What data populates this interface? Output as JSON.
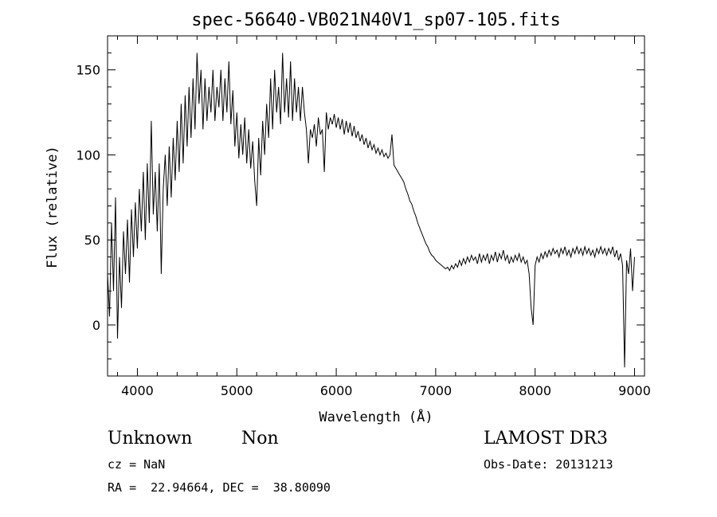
{
  "chart_data": {
    "type": "line",
    "title": "spec-56640-VB021N40V1_sp07-105.fits",
    "xlabel": "Wavelength (Å)",
    "ylabel": "Flux (relative)",
    "xlim": [
      3700,
      9100
    ],
    "ylim": [
      -30,
      170
    ],
    "xticks": [
      4000,
      5000,
      6000,
      7000,
      8000,
      9000
    ],
    "yticks": [
      0,
      50,
      100,
      150
    ],
    "grid": false,
    "series": [
      {
        "points": [
          [
            3700,
            30
          ],
          [
            3720,
            5
          ],
          [
            3740,
            60
          ],
          [
            3760,
            20
          ],
          [
            3780,
            75
          ],
          [
            3800,
            -8
          ],
          [
            3820,
            40
          ],
          [
            3840,
            10
          ],
          [
            3860,
            55
          ],
          [
            3880,
            30
          ],
          [
            3900,
            62
          ],
          [
            3920,
            25
          ],
          [
            3940,
            68
          ],
          [
            3960,
            40
          ],
          [
            3980,
            72
          ],
          [
            4000,
            45
          ],
          [
            4020,
            80
          ],
          [
            4040,
            55
          ],
          [
            4060,
            90
          ],
          [
            4080,
            50
          ],
          [
            4100,
            95
          ],
          [
            4120,
            60
          ],
          [
            4140,
            120
          ],
          [
            4160,
            65
          ],
          [
            4180,
            90
          ],
          [
            4200,
            55
          ],
          [
            4220,
            95
          ],
          [
            4240,
            30
          ],
          [
            4260,
            80
          ],
          [
            4280,
            100
          ],
          [
            4300,
            70
          ],
          [
            4320,
            105
          ],
          [
            4340,
            75
          ],
          [
            4360,
            110
          ],
          [
            4380,
            85
          ],
          [
            4400,
            120
          ],
          [
            4420,
            90
          ],
          [
            4440,
            130
          ],
          [
            4460,
            95
          ],
          [
            4480,
            135
          ],
          [
            4500,
            105
          ],
          [
            4520,
            140
          ],
          [
            4540,
            110
          ],
          [
            4560,
            145
          ],
          [
            4580,
            115
          ],
          [
            4600,
            160
          ],
          [
            4620,
            130
          ],
          [
            4640,
            150
          ],
          [
            4660,
            115
          ],
          [
            4680,
            145
          ],
          [
            4700,
            120
          ],
          [
            4720,
            140
          ],
          [
            4740,
            125
          ],
          [
            4760,
            150
          ],
          [
            4780,
            120
          ],
          [
            4800,
            140
          ],
          [
            4820,
            128
          ],
          [
            4840,
            150
          ],
          [
            4860,
            120
          ],
          [
            4880,
            145
          ],
          [
            4900,
            125
          ],
          [
            4920,
            155
          ],
          [
            4940,
            118
          ],
          [
            4960,
            138
          ],
          [
            4980,
            105
          ],
          [
            5000,
            125
          ],
          [
            5020,
            98
          ],
          [
            5040,
            118
          ],
          [
            5060,
            100
          ],
          [
            5080,
            122
          ],
          [
            5100,
            95
          ],
          [
            5120,
            115
          ],
          [
            5140,
            92
          ],
          [
            5160,
            108
          ],
          [
            5180,
            85
          ],
          [
            5200,
            70
          ],
          [
            5220,
            110
          ],
          [
            5240,
            88
          ],
          [
            5260,
            120
          ],
          [
            5280,
            100
          ],
          [
            5300,
            130
          ],
          [
            5320,
            110
          ],
          [
            5340,
            145
          ],
          [
            5360,
            115
          ],
          [
            5380,
            150
          ],
          [
            5400,
            125
          ],
          [
            5420,
            140
          ],
          [
            5440,
            118
          ],
          [
            5460,
            160
          ],
          [
            5480,
            125
          ],
          [
            5500,
            145
          ],
          [
            5520,
            122
          ],
          [
            5540,
            155
          ],
          [
            5560,
            120
          ],
          [
            5580,
            145
          ],
          [
            5600,
            125
          ],
          [
            5620,
            140
          ],
          [
            5640,
            120
          ],
          [
            5660,
            140
          ],
          [
            5680,
            125
          ],
          [
            5700,
            115
          ],
          [
            5720,
            95
          ],
          [
            5740,
            115
          ],
          [
            5760,
            110
          ],
          [
            5780,
            118
          ],
          [
            5800,
            105
          ],
          [
            5820,
            122
          ],
          [
            5840,
            112
          ],
          [
            5860,
            115
          ],
          [
            5880,
            90
          ],
          [
            5900,
            125
          ],
          [
            5920,
            115
          ],
          [
            5940,
            122
          ],
          [
            5960,
            118
          ],
          [
            5980,
            124
          ],
          [
            6000,
            116
          ],
          [
            6020,
            122
          ],
          [
            6040,
            115
          ],
          [
            6060,
            121
          ],
          [
            6080,
            112
          ],
          [
            6100,
            120
          ],
          [
            6120,
            113
          ],
          [
            6140,
            119
          ],
          [
            6160,
            111
          ],
          [
            6180,
            117
          ],
          [
            6200,
            110
          ],
          [
            6220,
            114
          ],
          [
            6240,
            108
          ],
          [
            6260,
            112
          ],
          [
            6280,
            106
          ],
          [
            6300,
            110
          ],
          [
            6320,
            104
          ],
          [
            6340,
            108
          ],
          [
            6360,
            103
          ],
          [
            6380,
            106
          ],
          [
            6400,
            101
          ],
          [
            6420,
            104
          ],
          [
            6440,
            100
          ],
          [
            6460,
            103
          ],
          [
            6480,
            99
          ],
          [
            6500,
            101
          ],
          [
            6520,
            98
          ],
          [
            6540,
            100
          ],
          [
            6560,
            112
          ],
          [
            6580,
            94
          ],
          [
            6600,
            92
          ],
          [
            6620,
            90
          ],
          [
            6640,
            88
          ],
          [
            6660,
            86
          ],
          [
            6680,
            84
          ],
          [
            6700,
            80
          ],
          [
            6720,
            77
          ],
          [
            6740,
            73
          ],
          [
            6760,
            71
          ],
          [
            6780,
            67
          ],
          [
            6800,
            64
          ],
          [
            6820,
            60
          ],
          [
            6840,
            57
          ],
          [
            6860,
            54
          ],
          [
            6880,
            51
          ],
          [
            6900,
            48
          ],
          [
            6920,
            46
          ],
          [
            6940,
            43
          ],
          [
            6960,
            41
          ],
          [
            6980,
            40
          ],
          [
            7000,
            38
          ],
          [
            7020,
            37
          ],
          [
            7040,
            36
          ],
          [
            7060,
            35
          ],
          [
            7080,
            34
          ],
          [
            7100,
            33
          ],
          [
            7120,
            34
          ],
          [
            7140,
            32
          ],
          [
            7160,
            35
          ],
          [
            7180,
            33
          ],
          [
            7200,
            36
          ],
          [
            7220,
            34
          ],
          [
            7240,
            38
          ],
          [
            7260,
            35
          ],
          [
            7280,
            39
          ],
          [
            7300,
            36
          ],
          [
            7320,
            40
          ],
          [
            7340,
            37
          ],
          [
            7360,
            41
          ],
          [
            7380,
            38
          ],
          [
            7400,
            40
          ],
          [
            7420,
            36
          ],
          [
            7440,
            42
          ],
          [
            7460,
            37
          ],
          [
            7480,
            41
          ],
          [
            7500,
            38
          ],
          [
            7520,
            42
          ],
          [
            7540,
            36
          ],
          [
            7560,
            41
          ],
          [
            7580,
            38
          ],
          [
            7600,
            43
          ],
          [
            7620,
            37
          ],
          [
            7640,
            42
          ],
          [
            7660,
            39
          ],
          [
            7680,
            44
          ],
          [
            7700,
            38
          ],
          [
            7720,
            41
          ],
          [
            7740,
            36
          ],
          [
            7760,
            40
          ],
          [
            7780,
            37
          ],
          [
            7800,
            41
          ],
          [
            7820,
            38
          ],
          [
            7840,
            42
          ],
          [
            7860,
            37
          ],
          [
            7880,
            40
          ],
          [
            7900,
            36
          ],
          [
            7920,
            38
          ],
          [
            7940,
            30
          ],
          [
            7960,
            10
          ],
          [
            7980,
            0
          ],
          [
            8000,
            35
          ],
          [
            8020,
            40
          ],
          [
            8040,
            37
          ],
          [
            8060,
            42
          ],
          [
            8080,
            39
          ],
          [
            8100,
            43
          ],
          [
            8120,
            40
          ],
          [
            8140,
            44
          ],
          [
            8160,
            41
          ],
          [
            8180,
            45
          ],
          [
            8200,
            42
          ],
          [
            8220,
            44
          ],
          [
            8240,
            40
          ],
          [
            8260,
            45
          ],
          [
            8280,
            42
          ],
          [
            8300,
            46
          ],
          [
            8320,
            41
          ],
          [
            8340,
            44
          ],
          [
            8360,
            40
          ],
          [
            8380,
            45
          ],
          [
            8400,
            42
          ],
          [
            8420,
            46
          ],
          [
            8440,
            42
          ],
          [
            8460,
            45
          ],
          [
            8480,
            41
          ],
          [
            8500,
            46
          ],
          [
            8520,
            42
          ],
          [
            8540,
            45
          ],
          [
            8560,
            41
          ],
          [
            8580,
            44
          ],
          [
            8600,
            40
          ],
          [
            8620,
            45
          ],
          [
            8640,
            42
          ],
          [
            8660,
            46
          ],
          [
            8680,
            42
          ],
          [
            8700,
            45
          ],
          [
            8720,
            41
          ],
          [
            8740,
            45
          ],
          [
            8760,
            42
          ],
          [
            8780,
            46
          ],
          [
            8800,
            40
          ],
          [
            8820,
            44
          ],
          [
            8840,
            38
          ],
          [
            8860,
            42
          ],
          [
            8880,
            35
          ],
          [
            8900,
            -25
          ],
          [
            8920,
            38
          ],
          [
            8940,
            30
          ],
          [
            8960,
            45
          ],
          [
            8980,
            20
          ],
          [
            9000,
            40
          ]
        ]
      }
    ]
  },
  "info": {
    "class": "Unknown",
    "subclass": "Non",
    "survey": "LAMOST DR3",
    "cz": "cz = NaN",
    "obs_date": "Obs-Date: 20131213",
    "coords": "RA =  22.94664, DEC =  38.80090"
  },
  "colors": {
    "line": "#000000",
    "background": "#ffffff"
  }
}
